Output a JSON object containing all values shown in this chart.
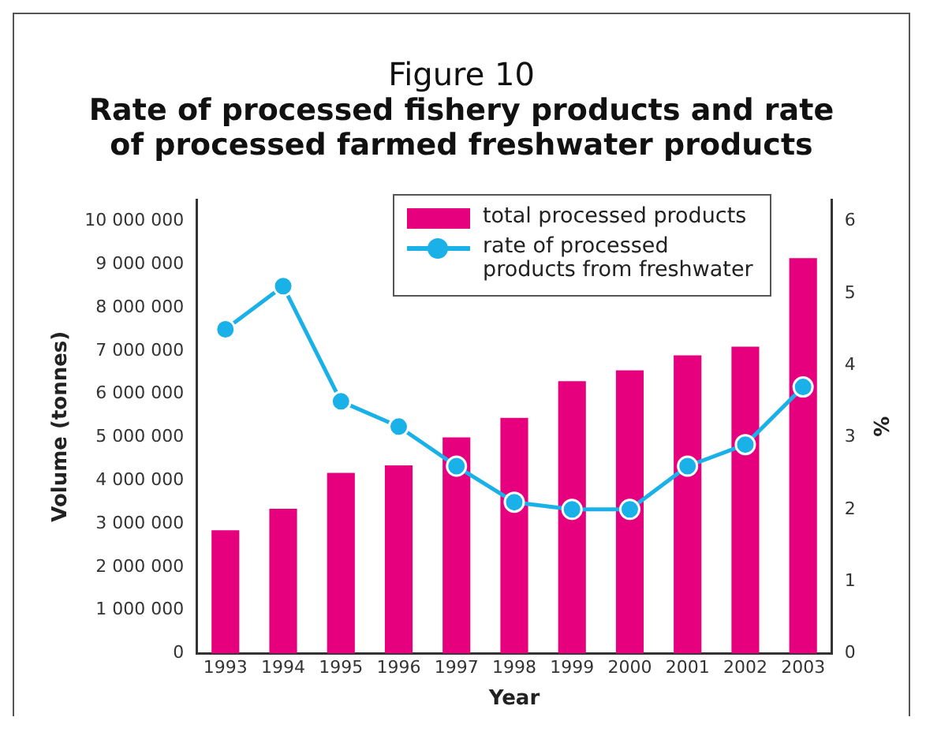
{
  "chart_data": {
    "type": "bar",
    "title": "Figure 10",
    "subtitle": "Rate of processed fishery products and rate of processed farmed freshwater products",
    "xlabel": "Year",
    "ylabel": "Volume (tonnes)",
    "y2label": "%",
    "categories": [
      "1993",
      "1994",
      "1995",
      "1996",
      "1997",
      "1998",
      "1999",
      "2000",
      "2001",
      "2002",
      "2003"
    ],
    "series": [
      {
        "name": "total processed products",
        "color": "#e6007e",
        "values": [
          2850000,
          3350000,
          4180000,
          4350000,
          5000000,
          5450000,
          6300000,
          6550000,
          6900000,
          7100000,
          9150000
        ]
      },
      {
        "name": "rate of processed products from freshwater",
        "type": "line",
        "axis": "y2",
        "color": "#1ab0e8",
        "marker": "circle",
        "values": [
          4.5,
          5.1,
          3.5,
          3.15,
          2.6,
          2.1,
          2.0,
          2.0,
          2.6,
          2.9,
          3.7
        ]
      }
    ],
    "ylim": [
      0,
      10500000
    ],
    "yticks": [
      0,
      {
        "value": 1000000,
        "label": "1 000 000"
      },
      {
        "value": 2000000,
        "label": "2 000 000"
      },
      {
        "value": 3000000,
        "label": "3 000 000"
      },
      {
        "value": 4000000,
        "label": "4 000 000"
      },
      {
        "value": 5000000,
        "label": "5 000 000"
      },
      {
        "value": 6000000,
        "label": "6 000 000"
      },
      {
        "value": 7000000,
        "label": "7 000 000"
      },
      {
        "value": 8000000,
        "label": "8 000 000"
      },
      {
        "value": 9000000,
        "label": "9 000 000"
      },
      {
        "value": 10000000,
        "label": "10 000 000"
      }
    ],
    "y2lim": [
      0,
      6.3
    ],
    "y2ticks": [
      0,
      1,
      2,
      3,
      4,
      5,
      6
    ],
    "grid": false,
    "legend": "top right"
  }
}
